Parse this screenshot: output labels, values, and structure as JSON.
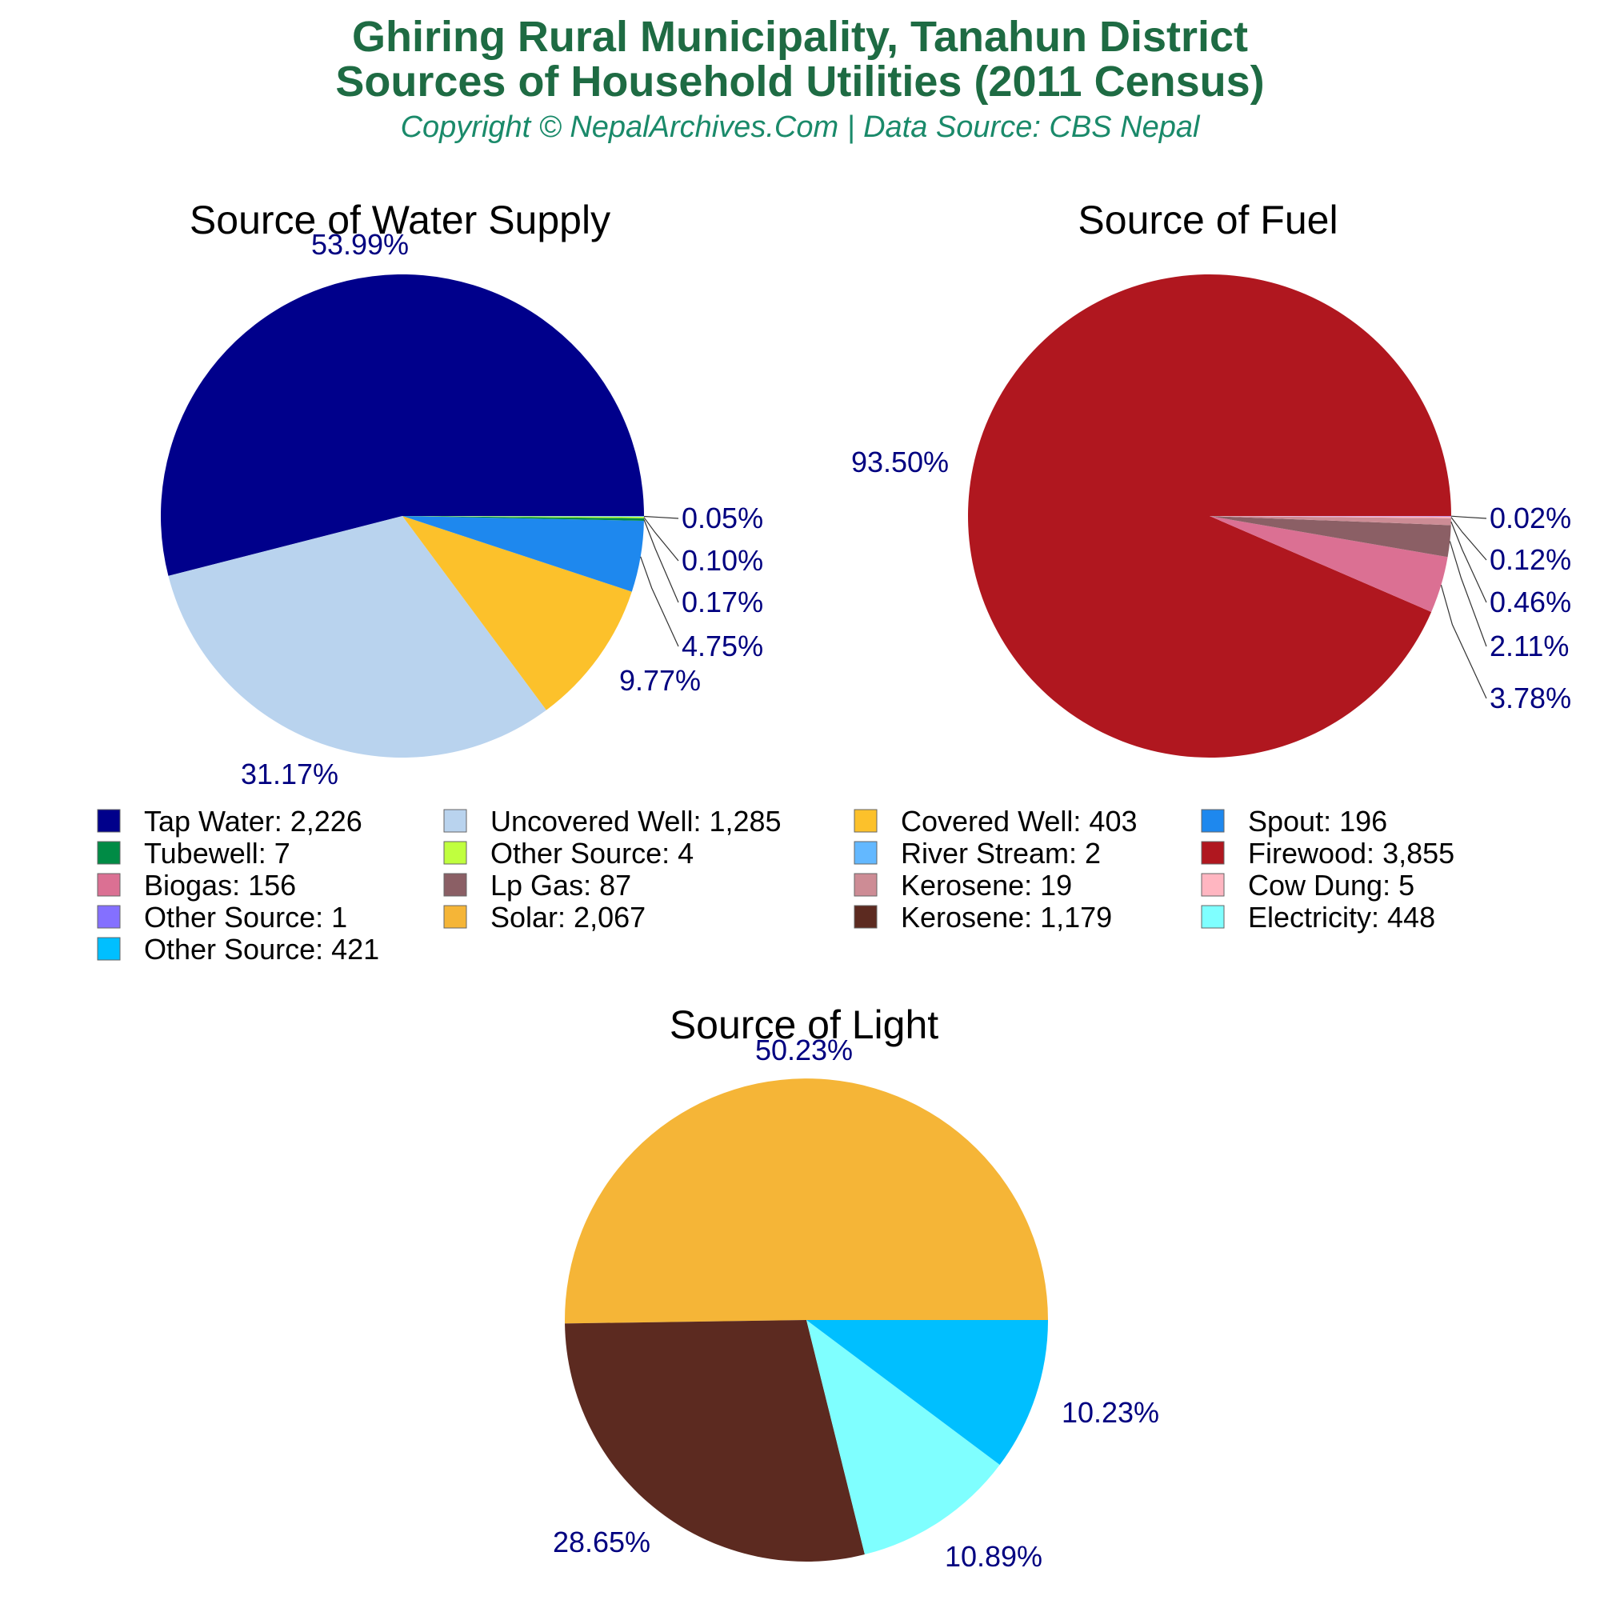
{
  "header": {
    "title_line1": "Ghiring Rural Municipality, Tanahun District",
    "title_line2": "Sources of Household Utilities (2011 Census)",
    "subtitle": "Copyright © NepalArchives.Com | Data Source: CBS Nepal"
  },
  "chart_data": [
    {
      "type": "pie",
      "title": "Source of Water Supply",
      "slices": [
        {
          "label": "Tap Water",
          "value": 2226,
          "pct": "53.99%",
          "color": "#00008B"
        },
        {
          "label": "Uncovered Well",
          "value": 1285,
          "pct": "31.17%",
          "color": "#B9D3EE"
        },
        {
          "label": "Covered Well",
          "value": 403,
          "pct": "9.77%",
          "color": "#FCC12B"
        },
        {
          "label": "Spout",
          "value": 196,
          "pct": "4.75%",
          "color": "#1E88EE"
        },
        {
          "label": "Tubewell",
          "value": 7,
          "pct": "0.17%",
          "color": "#008B45"
        },
        {
          "label": "Other Source",
          "value": 4,
          "pct": "0.10%",
          "color": "#C0FF3E"
        },
        {
          "label": "River Stream",
          "value": 2,
          "pct": "0.05%",
          "color": "#63B8FF"
        }
      ]
    },
    {
      "type": "pie",
      "title": "Source of Fuel",
      "slices": [
        {
          "label": "Firewood",
          "value": 3855,
          "pct": "93.50%",
          "color": "#B0171F"
        },
        {
          "label": "Biogas",
          "value": 156,
          "pct": "3.78%",
          "color": "#DB7093"
        },
        {
          "label": "Lp Gas",
          "value": 87,
          "pct": "2.11%",
          "color": "#8B5F65"
        },
        {
          "label": "Kerosene",
          "value": 19,
          "pct": "0.46%",
          "color": "#CD8C95"
        },
        {
          "label": "Cow Dung",
          "value": 5,
          "pct": "0.12%",
          "color": "#FFB6C1"
        },
        {
          "label": "Other Source",
          "value": 1,
          "pct": "0.02%",
          "color": "#8470FF"
        }
      ]
    },
    {
      "type": "pie",
      "title": "Source of Light",
      "slices": [
        {
          "label": "Solar",
          "value": 2067,
          "pct": "50.23%",
          "color": "#F5B537"
        },
        {
          "label": "Kerosene",
          "value": 1179,
          "pct": "28.65%",
          "color": "#5C2A20"
        },
        {
          "label": "Electricity",
          "value": 448,
          "pct": "10.89%",
          "color": "#7FFFFF"
        },
        {
          "label": "Other Source",
          "value": 421,
          "pct": "10.23%",
          "color": "#00BFFF"
        }
      ]
    }
  ],
  "legend": [
    {
      "text": "Tap Water: 2,226",
      "color": "#00008B"
    },
    {
      "text": "Uncovered Well: 1,285",
      "color": "#B9D3EE"
    },
    {
      "text": "Covered Well: 403",
      "color": "#FCC12B"
    },
    {
      "text": "Spout: 196",
      "color": "#1E88EE"
    },
    {
      "text": "Tubewell: 7",
      "color": "#008B45"
    },
    {
      "text": "Other Source: 4",
      "color": "#C0FF3E"
    },
    {
      "text": "River Stream: 2",
      "color": "#63B8FF"
    },
    {
      "text": "Firewood: 3,855",
      "color": "#B0171F"
    },
    {
      "text": "Biogas: 156",
      "color": "#DB7093"
    },
    {
      "text": "Lp Gas: 87",
      "color": "#8B5F65"
    },
    {
      "text": "Kerosene: 19",
      "color": "#CD8C95"
    },
    {
      "text": "Cow Dung: 5",
      "color": "#FFB6C1"
    },
    {
      "text": "Other Source: 1",
      "color": "#8470FF"
    },
    {
      "text": "Solar: 2,067",
      "color": "#F5B537"
    },
    {
      "text": "Kerosene: 1,179",
      "color": "#5C2A20"
    },
    {
      "text": "Electricity: 448",
      "color": "#7FFFFF"
    },
    {
      "text": "Other Source: 421",
      "color": "#00BFFF"
    }
  ]
}
